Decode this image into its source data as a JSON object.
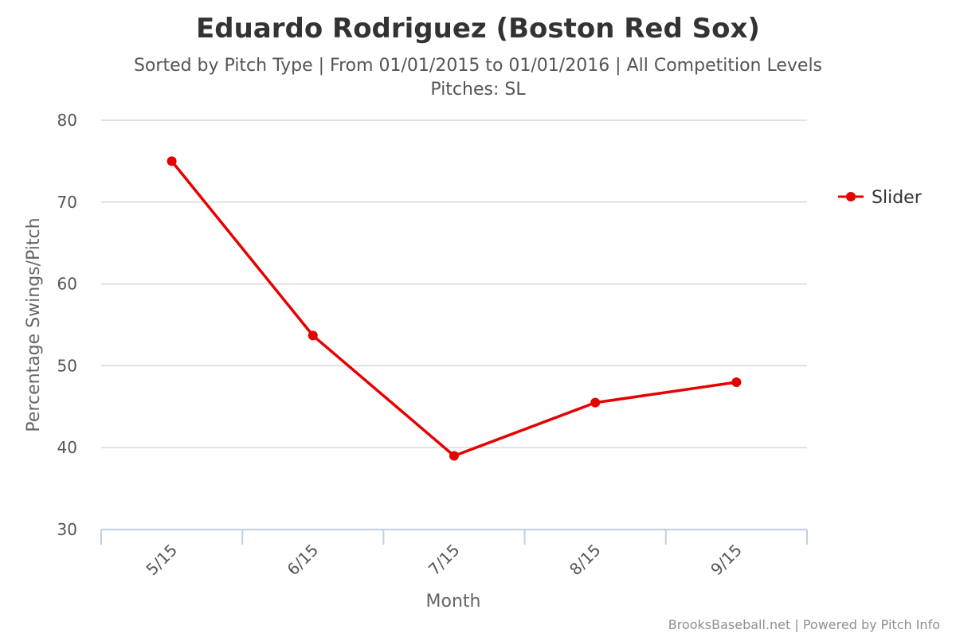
{
  "title": "Eduardo Rodriguez (Boston Red Sox)",
  "subtitle_line1": "Sorted by Pitch Type | From 01/01/2015 to 01/01/2016 | All Competition Levels",
  "subtitle_line2": "Pitches: SL",
  "credits": "BrooksBaseball.net | Powered by Pitch Info",
  "colors": {
    "series": "#e60000",
    "grid": "#d8d8d8",
    "axis": "#c0d0e0"
  },
  "chart_data": {
    "type": "line",
    "xlabel": "Month",
    "ylabel": "Percentage Swings/Pitch",
    "categories": [
      "5/15",
      "6/15",
      "7/15",
      "8/15",
      "9/15"
    ],
    "ylim": [
      30,
      80
    ],
    "yticks": [
      "30",
      "40",
      "50",
      "60",
      "70",
      "80"
    ],
    "grid": true,
    "legend_position": "right",
    "series": [
      {
        "name": "Slider",
        "color": "#e60000",
        "values": [
          75.0,
          53.7,
          39.0,
          45.5,
          48.0
        ]
      }
    ]
  }
}
